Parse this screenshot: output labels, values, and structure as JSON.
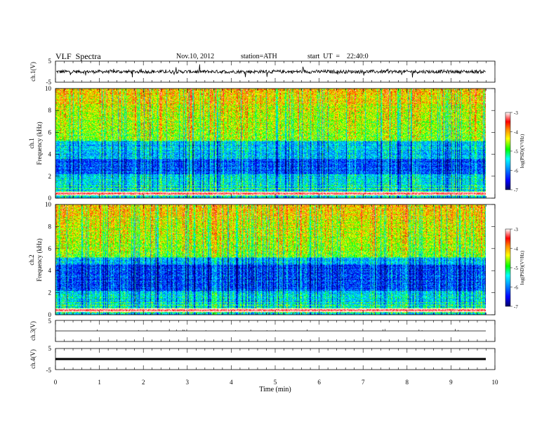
{
  "header": {
    "title": "VLF  Spectra",
    "date": "Nov.10, 2012",
    "station": "station=ATH",
    "start": "start  UT  =    22:40:0"
  },
  "colors": {
    "background": "#ffffff",
    "colormap": [
      "#000066",
      "#0000ff",
      "#00aaff",
      "#00ffff",
      "#00ff00",
      "#ffff00",
      "#ff8800",
      "#ff0000",
      "#ffffff"
    ]
  },
  "chart_data": [
    {
      "type": "line",
      "name": "ch1-waveform",
      "ylabel": "ch.1(V)",
      "ylim": [
        -5,
        5
      ],
      "yticks": [
        "5",
        "-5"
      ],
      "baseline": 0.0,
      "noise_amplitude": 1.0,
      "x_range_min": [
        0,
        9.8
      ]
    },
    {
      "type": "heatmap",
      "name": "ch1-spectrogram",
      "ylabel_lines": [
        "ch.1",
        "Frequency  (kHz)"
      ],
      "ylim": [
        0,
        10
      ],
      "yticks": [
        "0",
        "2",
        "4",
        "6",
        "8",
        "10"
      ],
      "xlim": [
        0,
        9.8
      ],
      "colorbar": {
        "label": "log(PSD)(V²/Hz)",
        "range": [
          -7,
          -3
        ],
        "ticks": [
          "-3",
          "-4",
          "-5",
          "-6",
          "-7"
        ]
      }
    },
    {
      "type": "heatmap",
      "name": "ch2-spectrogram",
      "ylabel_lines": [
        "ch.2",
        "Frequency  (kHz)"
      ],
      "ylim": [
        0,
        10
      ],
      "yticks": [
        "0",
        "2",
        "4",
        "6",
        "8",
        "10"
      ],
      "xlim": [
        0,
        9.8
      ],
      "colorbar": {
        "label": "log(PSD)(V²/Hz)",
        "range": [
          -7,
          -3
        ],
        "ticks": [
          "-3",
          "-4",
          "-5",
          "-6",
          "-7"
        ]
      }
    },
    {
      "type": "line",
      "name": "ch3-waveform",
      "ylabel": "ch.3(V)",
      "ylim": [
        -5,
        5
      ],
      "yticks": [
        "5"
      ],
      "baseline": 0.0
    },
    {
      "type": "line",
      "name": "ch4-waveform",
      "ylabel": "ch.4(V)",
      "ylim": [
        -5,
        5
      ],
      "yticks": [
        "5",
        "-5"
      ],
      "baseline": 0.0
    },
    {
      "type": "axis",
      "name": "time-axis",
      "xlabel": "Time  (min)",
      "xlim": [
        0,
        10
      ],
      "xticks": [
        "0",
        "1",
        "2",
        "3",
        "4",
        "5",
        "6",
        "7",
        "8",
        "9",
        "10"
      ]
    }
  ]
}
